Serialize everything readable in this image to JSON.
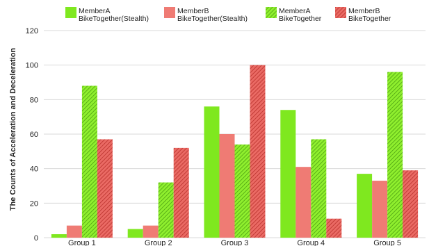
{
  "chart_data": {
    "type": "bar",
    "categories": [
      "Group 1",
      "Group 2",
      "Group 3",
      "Group 4",
      "Group 5"
    ],
    "series": [
      {
        "name_line1": "MemberA",
        "name_line2": "BikeTogether(Stealth)",
        "color": "#7fe81f",
        "pattern": "solid",
        "values": [
          2,
          5,
          76,
          74,
          37
        ]
      },
      {
        "name_line1": "MemberB",
        "name_line2": "BikeTogether(Stealth)",
        "color": "#ef7b74",
        "pattern": "solid",
        "values": [
          7,
          7,
          60,
          41,
          33
        ]
      },
      {
        "name_line1": "MemberA",
        "name_line2": "BikeTogether",
        "color": "#7fe81f",
        "pattern": "hatched",
        "values": [
          88,
          32,
          54,
          57,
          96
        ]
      },
      {
        "name_line1": "MemberB",
        "name_line2": "BikeTogether",
        "color": "#e0504c",
        "pattern": "hatched",
        "values": [
          57,
          52,
          100,
          11,
          39
        ]
      }
    ],
    "ylabel": "The Counts of Acceleration and Deceleration",
    "xlabel": "",
    "ylim": [
      0,
      120
    ],
    "yticks": [
      0,
      20,
      40,
      60,
      80,
      100,
      120
    ],
    "grid": true,
    "legend_position": "top"
  }
}
